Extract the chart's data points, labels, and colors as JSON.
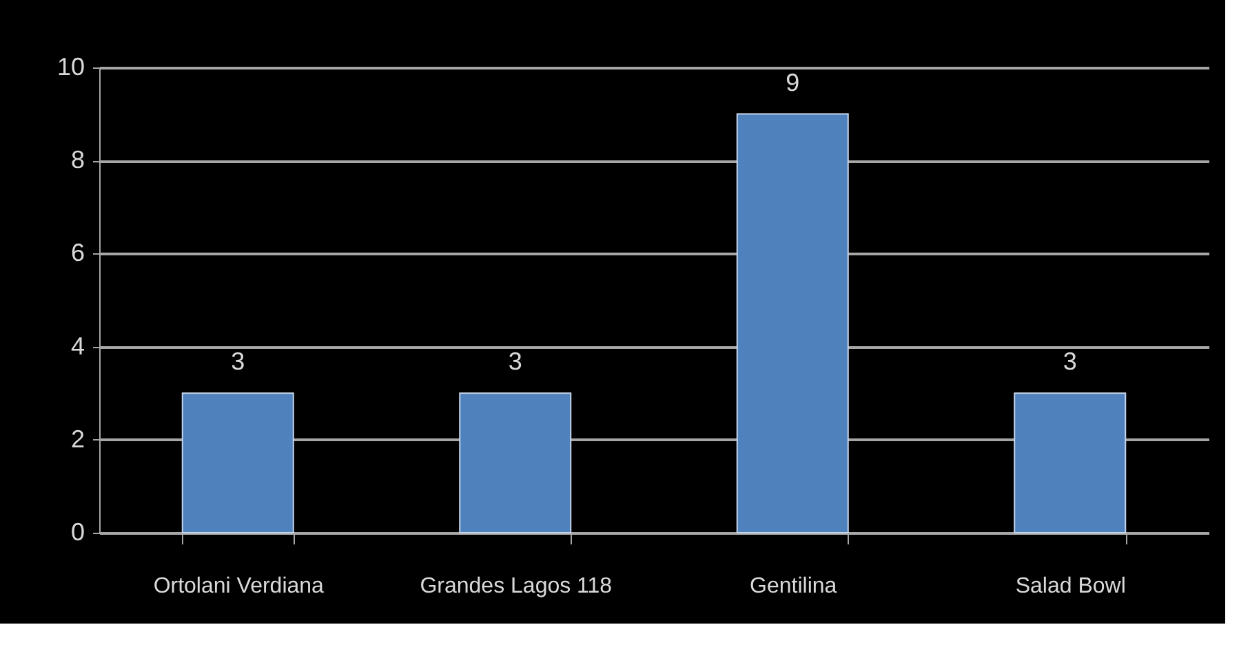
{
  "chart_data": {
    "type": "bar",
    "categories": [
      "Ortolani Verdiana",
      "Grandes Lagos 118",
      "Gentilina",
      "Salad Bowl"
    ],
    "values": [
      3,
      3,
      9,
      3
    ],
    "color": "#4f81bd",
    "ylim": [
      0,
      10
    ],
    "yticks": [
      0,
      2,
      4,
      6,
      8,
      10
    ],
    "grid": "y",
    "data_labels": true
  }
}
